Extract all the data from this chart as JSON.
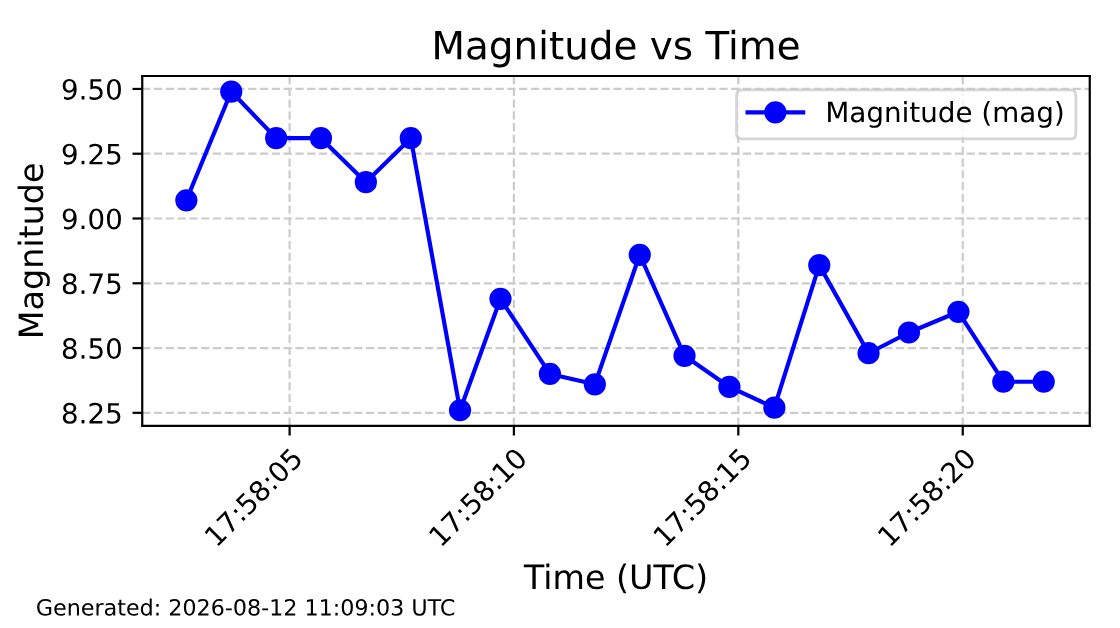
{
  "chart_data": {
    "type": "line",
    "title": "Magnitude vs Time",
    "xlabel": "Time (UTC)",
    "ylabel": "Magnitude",
    "x": [
      17.967417,
      17.967695,
      17.967973,
      17.96825,
      17.968528,
      17.968806,
      17.969111,
      17.969361,
      17.969667,
      17.969945,
      17.970223,
      17.9705,
      17.970778,
      17.971056,
      17.971334,
      17.971639,
      17.971889,
      17.972195,
      17.972473,
      17.972723
    ],
    "series": [
      {
        "name": "Magnitude (mag)",
        "color": "#0000ff",
        "values": [
          9.07,
          9.49,
          9.31,
          9.31,
          9.14,
          9.31,
          8.26,
          8.69,
          8.4,
          8.36,
          8.86,
          8.47,
          8.35,
          8.27,
          8.82,
          8.48,
          8.56,
          8.64,
          8.37,
          8.37
        ]
      }
    ],
    "xlim": [
      17.967144,
      17.973008
    ],
    "xticks": [
      {
        "value": 17.968056,
        "label": "17:58:05"
      },
      {
        "value": 17.969444,
        "label": "17:58:10"
      },
      {
        "value": 17.970833,
        "label": "17:58:15"
      },
      {
        "value": 17.972222,
        "label": "17:58:20"
      }
    ],
    "ylim": [
      8.2,
      9.55
    ],
    "yticks": [
      {
        "value": 8.25,
        "label": "8.25"
      },
      {
        "value": 8.5,
        "label": "8.50"
      },
      {
        "value": 8.75,
        "label": "8.75"
      },
      {
        "value": 9.0,
        "label": "9.00"
      },
      {
        "value": 9.25,
        "label": "9.25"
      },
      {
        "value": 9.5,
        "label": "9.50"
      }
    ],
    "grid": true,
    "legend": "top right",
    "marker": "circle",
    "line_style": "solid",
    "annotations": [
      "Generated: 2026-08-12 11:09:03 UTC"
    ]
  }
}
